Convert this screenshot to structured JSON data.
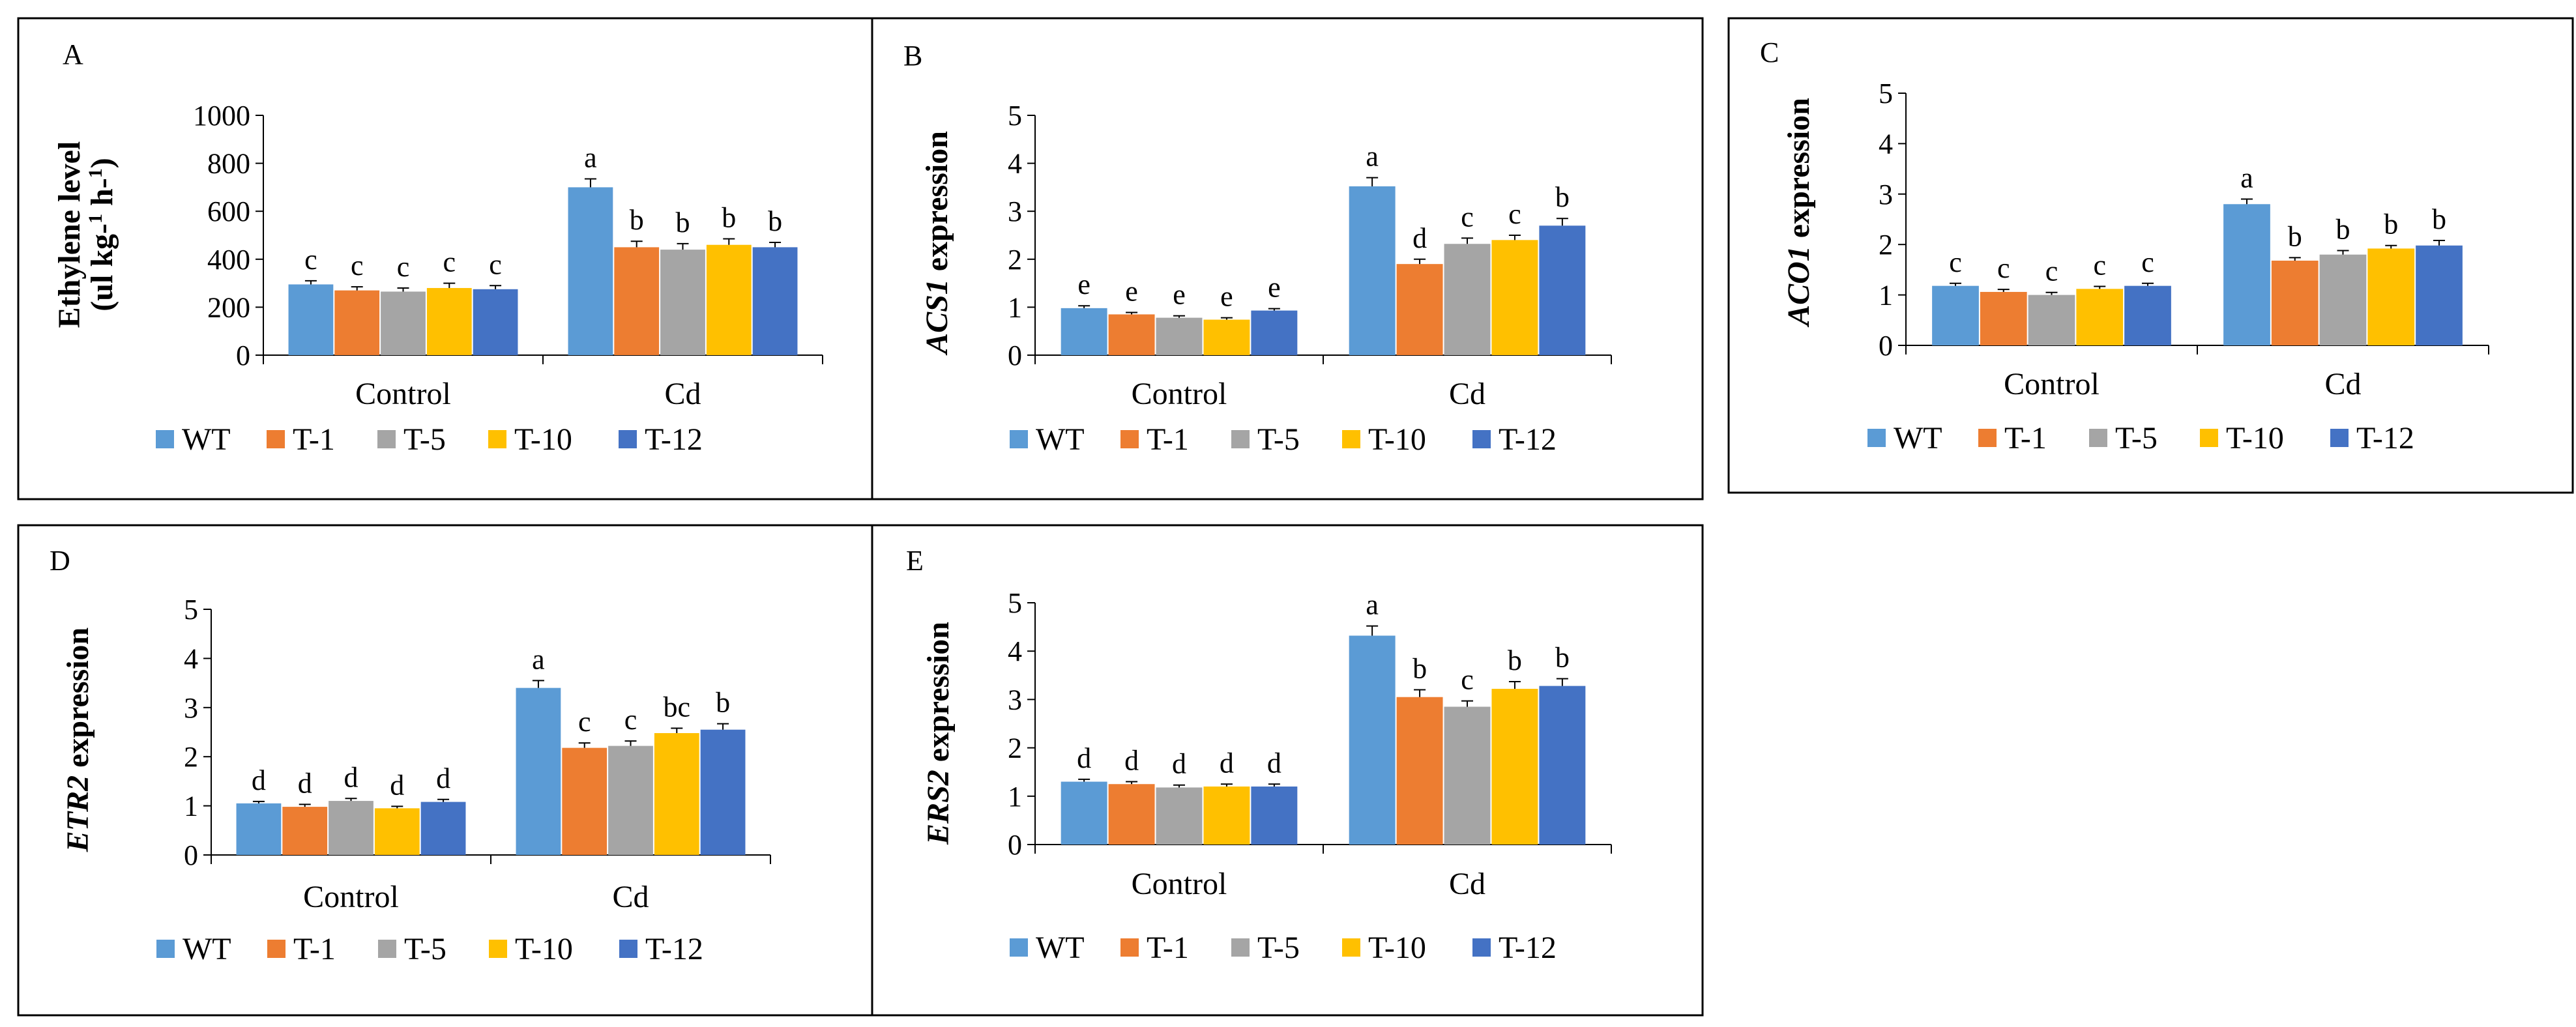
{
  "legend": [
    {
      "name": "WT",
      "color": "#5b9bd5"
    },
    {
      "name": "T-1",
      "color": "#ed7d31"
    },
    {
      "name": "T-5",
      "color": "#a5a5a5"
    },
    {
      "name": "T-10",
      "color": "#ffc000"
    },
    {
      "name": "T-12",
      "color": "#4472c4"
    }
  ],
  "chart_data": [
    {
      "type": "bar",
      "panel": "A",
      "ylabel_prefix": "Ethylene level",
      "ylabel_sub": {
        "open": "(ul kg-",
        "sup1": "1",
        "mid": " h-",
        "sup2": "1",
        "close": ")"
      },
      "ylabel_italic": "",
      "ylabel_suffix": "",
      "ylim": [
        0,
        1000
      ],
      "yticks": [
        "0",
        "200",
        "400",
        "600",
        "800",
        "1000"
      ],
      "categories": [
        "Control",
        "Cd"
      ],
      "series": [
        {
          "name": "WT",
          "values": [
            295,
            700
          ],
          "errors": [
            15,
            35
          ],
          "letters": [
            "c",
            "a"
          ]
        },
        {
          "name": "T-1",
          "values": [
            270,
            450
          ],
          "errors": [
            15,
            25
          ],
          "letters": [
            "c",
            "b"
          ]
        },
        {
          "name": "T-5",
          "values": [
            265,
            440
          ],
          "errors": [
            15,
            25
          ],
          "letters": [
            "c",
            "b"
          ]
        },
        {
          "name": "T-10",
          "values": [
            280,
            460
          ],
          "errors": [
            20,
            25
          ],
          "letters": [
            "c",
            "b"
          ]
        },
        {
          "name": "T-12",
          "values": [
            275,
            450
          ],
          "errors": [
            15,
            20
          ],
          "letters": [
            "c",
            "b"
          ]
        }
      ]
    },
    {
      "type": "bar",
      "panel": "B",
      "ylabel_prefix": "",
      "ylabel_italic": "ACS1",
      "ylabel_suffix": " expression",
      "ylim": [
        0,
        5
      ],
      "yticks": [
        "0",
        "1",
        "2",
        "3",
        "4",
        "5"
      ],
      "categories": [
        "Control",
        "Cd"
      ],
      "series": [
        {
          "name": "WT",
          "values": [
            0.98,
            3.52
          ],
          "errors": [
            0.05,
            0.18
          ],
          "letters": [
            "e",
            "a"
          ]
        },
        {
          "name": "T-1",
          "values": [
            0.85,
            1.9
          ],
          "errors": [
            0.04,
            0.1
          ],
          "letters": [
            "e",
            "d"
          ]
        },
        {
          "name": "T-5",
          "values": [
            0.78,
            2.32
          ],
          "errors": [
            0.04,
            0.12
          ],
          "letters": [
            "e",
            "c"
          ]
        },
        {
          "name": "T-10",
          "values": [
            0.74,
            2.4
          ],
          "errors": [
            0.04,
            0.1
          ],
          "letters": [
            "e",
            "c"
          ]
        },
        {
          "name": "T-12",
          "values": [
            0.93,
            2.7
          ],
          "errors": [
            0.04,
            0.15
          ],
          "letters": [
            "e",
            "b"
          ]
        }
      ]
    },
    {
      "type": "bar",
      "panel": "C",
      "ylabel_prefix": "",
      "ylabel_italic": "ACO1",
      "ylabel_suffix": " expression",
      "ylim": [
        0,
        5
      ],
      "yticks": [
        "0",
        "1",
        "2",
        "3",
        "4",
        "5"
      ],
      "categories": [
        "Control",
        "Cd"
      ],
      "series": [
        {
          "name": "WT",
          "values": [
            1.18,
            2.8
          ],
          "errors": [
            0.05,
            0.1
          ],
          "letters": [
            "c",
            "a"
          ]
        },
        {
          "name": "T-1",
          "values": [
            1.06,
            1.68
          ],
          "errors": [
            0.05,
            0.06
          ],
          "letters": [
            "c",
            "b"
          ]
        },
        {
          "name": "T-5",
          "values": [
            1.0,
            1.8
          ],
          "errors": [
            0.05,
            0.08
          ],
          "letters": [
            "c",
            "b"
          ]
        },
        {
          "name": "T-10",
          "values": [
            1.12,
            1.92
          ],
          "errors": [
            0.05,
            0.06
          ],
          "letters": [
            "c",
            "b"
          ]
        },
        {
          "name": "T-12",
          "values": [
            1.18,
            1.98
          ],
          "errors": [
            0.05,
            0.1
          ],
          "letters": [
            "c",
            "b"
          ]
        }
      ]
    },
    {
      "type": "bar",
      "panel": "D",
      "ylabel_prefix": "",
      "ylabel_italic": "ETR2",
      "ylabel_suffix": " expression",
      "ylim": [
        0,
        5
      ],
      "yticks": [
        "0",
        "1",
        "2",
        "3",
        "4",
        "5"
      ],
      "categories": [
        "Control",
        "Cd"
      ],
      "series": [
        {
          "name": "WT",
          "values": [
            1.05,
            3.4
          ],
          "errors": [
            0.04,
            0.15
          ],
          "letters": [
            "d",
            "a"
          ]
        },
        {
          "name": "T-1",
          "values": [
            0.98,
            2.18
          ],
          "errors": [
            0.05,
            0.1
          ],
          "letters": [
            "d",
            "c"
          ]
        },
        {
          "name": "T-5",
          "values": [
            1.1,
            2.22
          ],
          "errors": [
            0.05,
            0.1
          ],
          "letters": [
            "d",
            "c"
          ]
        },
        {
          "name": "T-10",
          "values": [
            0.95,
            2.48
          ],
          "errors": [
            0.04,
            0.1
          ],
          "letters": [
            "d",
            "bc"
          ]
        },
        {
          "name": "T-12",
          "values": [
            1.08,
            2.55
          ],
          "errors": [
            0.05,
            0.12
          ],
          "letters": [
            "d",
            "b"
          ]
        }
      ]
    },
    {
      "type": "bar",
      "panel": "E",
      "ylabel_prefix": "",
      "ylabel_italic": "ERS2",
      "ylabel_suffix": " expression",
      "ylim": [
        0,
        5
      ],
      "yticks": [
        "0",
        "1",
        "2",
        "3",
        "4",
        "5"
      ],
      "categories": [
        "Control",
        "Cd"
      ],
      "series": [
        {
          "name": "WT",
          "values": [
            1.3,
            4.32
          ],
          "errors": [
            0.05,
            0.2
          ],
          "letters": [
            "d",
            "a"
          ]
        },
        {
          "name": "T-1",
          "values": [
            1.25,
            3.05
          ],
          "errors": [
            0.05,
            0.15
          ],
          "letters": [
            "d",
            "b"
          ]
        },
        {
          "name": "T-5",
          "values": [
            1.18,
            2.85
          ],
          "errors": [
            0.05,
            0.12
          ],
          "letters": [
            "d",
            "c"
          ]
        },
        {
          "name": "T-10",
          "values": [
            1.2,
            3.22
          ],
          "errors": [
            0.05,
            0.15
          ],
          "letters": [
            "d",
            "b"
          ]
        },
        {
          "name": "T-12",
          "values": [
            1.2,
            3.28
          ],
          "errors": [
            0.05,
            0.15
          ],
          "letters": [
            "d",
            "b"
          ]
        }
      ]
    }
  ]
}
